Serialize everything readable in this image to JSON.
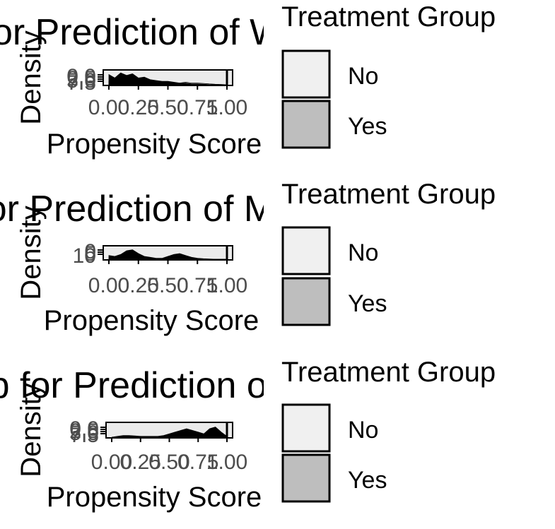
{
  "chart_data": [
    {
      "type": "area",
      "title": "Overlap for Prediction of Weekly Sport Participation",
      "xlabel": "Propensity Score",
      "ylabel": "Density",
      "x_ticks": [
        "0.00",
        "0.25",
        "0.50",
        "0.75",
        "1.00"
      ],
      "y_ticks": [
        "0.0",
        "2.5",
        "5.0",
        "7.5"
      ],
      "xlim": [
        0,
        1
      ],
      "ylim": [
        0,
        7.5
      ],
      "legend": {
        "title": "Treatment Group",
        "position": "right",
        "entries": [
          "No",
          "Yes"
        ]
      },
      "x": [
        0.0,
        0.05,
        0.1,
        0.15,
        0.2,
        0.25,
        0.3,
        0.35,
        0.4,
        0.45,
        0.5,
        0.55,
        0.6,
        0.65,
        0.7,
        0.75,
        0.8,
        0.85,
        0.9,
        0.95,
        1.0
      ],
      "series": [
        {
          "name": "No",
          "values": [
            6.0,
            4.0,
            7.0,
            5.5,
            6.5,
            4.0,
            4.5,
            3.0,
            2.5,
            2.0,
            2.0,
            1.5,
            1.0,
            1.0,
            0.5,
            0.5,
            0.3,
            0.1,
            0.0,
            0.0,
            0.0
          ]
        },
        {
          "name": "Yes",
          "values": [
            2.0,
            1.5,
            2.0,
            2.0,
            2.5,
            1.5,
            1.5,
            1.0,
            1.0,
            1.0,
            1.5,
            1.0,
            1.0,
            1.5,
            1.0,
            1.0,
            0.8,
            0.5,
            0.3,
            0.2,
            0.0
          ]
        }
      ]
    },
    {
      "type": "area",
      "title": "Overlap for Prediction of Monthly Sport Participation",
      "xlabel": "Propensity Score",
      "ylabel": "Density",
      "x_ticks": [
        "0.00",
        "0.25",
        "0.50",
        "0.75",
        "1.00"
      ],
      "y_ticks": [
        "0",
        "5",
        "10"
      ],
      "xlim": [
        0,
        1
      ],
      "ylim": [
        0,
        12
      ],
      "legend": {
        "title": "Treatment Group",
        "position": "right",
        "entries": [
          "No",
          "Yes"
        ]
      },
      "x": [
        0.0,
        0.05,
        0.1,
        0.15,
        0.2,
        0.25,
        0.3,
        0.35,
        0.4,
        0.45,
        0.5,
        0.55,
        0.6,
        0.65,
        0.7,
        0.75,
        0.8,
        0.85,
        0.9,
        0.95,
        1.0
      ],
      "series": [
        {
          "name": "No",
          "values": [
            4.0,
            3.0,
            5.0,
            9.0,
            10.0,
            6.0,
            3.0,
            2.0,
            1.0,
            1.0,
            3.0,
            5.0,
            6.0,
            4.0,
            2.0,
            1.0,
            0.5,
            0.2,
            0.0,
            0.0,
            0.0
          ]
        },
        {
          "name": "Yes",
          "values": [
            1.0,
            1.0,
            2.0,
            3.0,
            3.0,
            2.0,
            1.0,
            1.0,
            0.5,
            0.5,
            1.0,
            1.5,
            2.0,
            1.5,
            1.0,
            0.5,
            0.3,
            0.1,
            0.0,
            0.0,
            0.0
          ]
        }
      ]
    },
    {
      "type": "area",
      "title": "Overlap for Prediction of No Sport Participation",
      "xlabel": "Propensity Score",
      "ylabel": "Density",
      "x_ticks": [
        "0.00",
        "0.25",
        "0.50",
        "0.75",
        "1.00"
      ],
      "y_ticks": [
        "0.0",
        "2.5",
        "5.0",
        "7.5"
      ],
      "xlim": [
        0,
        1
      ],
      "ylim": [
        0,
        7.5
      ],
      "legend": {
        "title": "Treatment Group",
        "position": "right",
        "entries": [
          "No",
          "Yes"
        ]
      },
      "x": [
        0.0,
        0.05,
        0.1,
        0.15,
        0.2,
        0.25,
        0.3,
        0.35,
        0.4,
        0.45,
        0.5,
        0.55,
        0.6,
        0.65,
        0.7,
        0.75,
        0.8,
        0.85,
        0.9,
        0.95,
        1.0
      ],
      "series": [
        {
          "name": "No",
          "values": [
            0.0,
            0.5,
            1.0,
            1.0,
            0.8,
            0.5,
            0.5,
            0.5,
            0.5,
            1.0,
            2.0,
            3.0,
            4.0,
            5.0,
            4.0,
            3.0,
            2.0,
            5.0,
            6.0,
            3.0,
            0.5
          ]
        },
        {
          "name": "Yes",
          "values": [
            0.0,
            0.2,
            0.4,
            0.5,
            0.4,
            0.3,
            0.3,
            0.3,
            0.4,
            0.6,
            1.0,
            1.5,
            2.0,
            2.5,
            2.0,
            1.5,
            1.0,
            2.0,
            2.5,
            1.5,
            0.2
          ]
        }
      ]
    }
  ],
  "style": {
    "fill_no": "#f0f0f0",
    "fill_yes": "#bebebe",
    "ink": "#000000",
    "tick_text": "#4d4d4d"
  }
}
